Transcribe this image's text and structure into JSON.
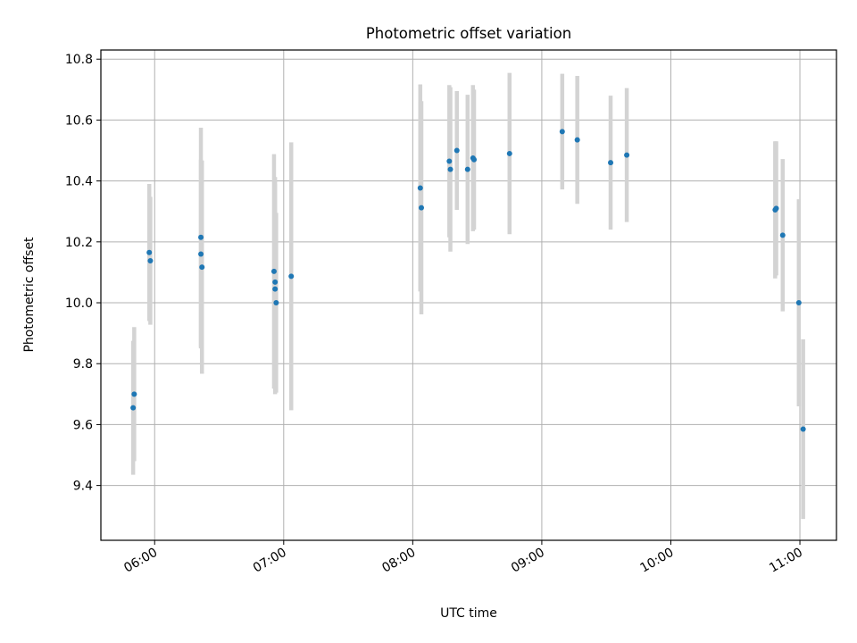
{
  "chart_data": {
    "type": "scatter",
    "title": "Photometric offset variation",
    "xlabel": "UTC time",
    "ylabel": "Photometric offset",
    "x_unit": "time of day (HH:MM, UTC)",
    "xlim": [
      "05:35",
      "11:17"
    ],
    "ylim": [
      9.22,
      10.83
    ],
    "xticks": [
      "06:00",
      "07:00",
      "08:00",
      "09:00",
      "10:00",
      "11:00"
    ],
    "yticks": [
      9.4,
      9.6,
      9.8,
      10.0,
      10.2,
      10.4,
      10.6,
      10.8
    ],
    "ytick_labels": [
      "9.4",
      "9.6",
      "9.8",
      "10.0",
      "10.2",
      "10.4",
      "10.6",
      "10.8"
    ],
    "grid": true,
    "colors": {
      "point": "#1f77b4",
      "error_bar": "#d3d3d3",
      "grid": "#b0b0b0"
    },
    "series": [
      {
        "points": [
          {
            "x": "05:50:00",
            "y": 9.655,
            "err": 0.22
          },
          {
            "x": "05:50:30",
            "y": 9.7,
            "err": 0.22
          },
          {
            "x": "05:57:30",
            "y": 10.165,
            "err": 0.225
          },
          {
            "x": "05:58:00",
            "y": 10.138,
            "err": 0.21
          },
          {
            "x": "06:21:30",
            "y": 10.215,
            "err": 0.36
          },
          {
            "x": "06:21:30",
            "y": 10.16,
            "err": 0.31
          },
          {
            "x": "06:22:00",
            "y": 10.117,
            "err": 0.35
          },
          {
            "x": "06:55:30",
            "y": 10.103,
            "err": 0.385
          },
          {
            "x": "06:56:00",
            "y": 10.068,
            "err": 0.345
          },
          {
            "x": "06:56:00",
            "y": 10.045,
            "err": 0.345
          },
          {
            "x": "06:56:30",
            "y": 10.0,
            "err": 0.295
          },
          {
            "x": "07:03:30",
            "y": 10.087,
            "err": 0.44
          },
          {
            "x": "08:03:30",
            "y": 10.377,
            "err": 0.34
          },
          {
            "x": "08:04:00",
            "y": 10.312,
            "err": 0.35
          },
          {
            "x": "08:17:00",
            "y": 10.465,
            "err": 0.25
          },
          {
            "x": "08:17:30",
            "y": 10.438,
            "err": 0.27
          },
          {
            "x": "08:20:30",
            "y": 10.5,
            "err": 0.195
          },
          {
            "x": "08:25:30",
            "y": 10.438,
            "err": 0.245
          },
          {
            "x": "08:28:00",
            "y": 10.475,
            "err": 0.24
          },
          {
            "x": "08:28:30",
            "y": 10.47,
            "err": 0.23
          },
          {
            "x": "08:45:00",
            "y": 10.49,
            "err": 0.265
          },
          {
            "x": "09:09:30",
            "y": 10.562,
            "err": 0.19
          },
          {
            "x": "09:16:30",
            "y": 10.535,
            "err": 0.21
          },
          {
            "x": "09:32:00",
            "y": 10.46,
            "err": 0.22
          },
          {
            "x": "09:39:30",
            "y": 10.485,
            "err": 0.22
          },
          {
            "x": "10:48:30",
            "y": 10.305,
            "err": 0.225
          },
          {
            "x": "10:49:00",
            "y": 10.31,
            "err": 0.22
          },
          {
            "x": "10:52:00",
            "y": 10.222,
            "err": 0.25
          },
          {
            "x": "10:59:30",
            "y": 10.0,
            "err": 0.34
          },
          {
            "x": "11:01:30",
            "y": 9.585,
            "err": 0.295
          }
        ]
      }
    ]
  }
}
